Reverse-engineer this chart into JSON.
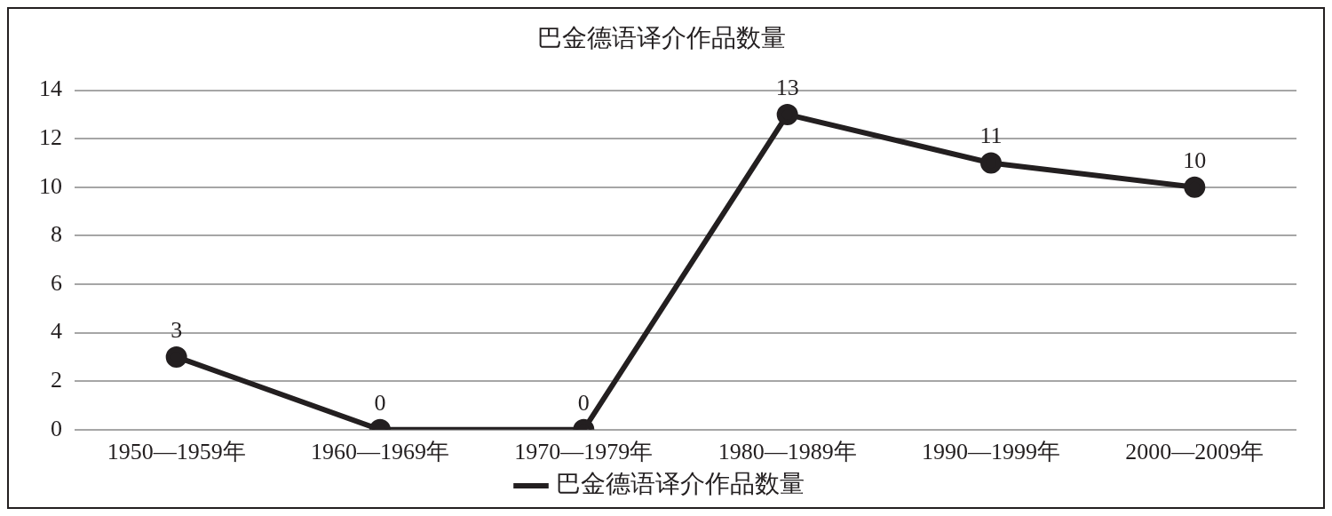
{
  "chart_data": {
    "type": "line",
    "title": "巴金德语译介作品数量",
    "categories": [
      "1950—1959年",
      "1960—1969年",
      "1970—1979年",
      "1980—1989年",
      "1990—1999年",
      "2000—2009年"
    ],
    "series": [
      {
        "name": "巴金德语译介作品数量",
        "color": "#231f20",
        "values": [
          3,
          0,
          0,
          13,
          11,
          10
        ]
      }
    ],
    "ylim": [
      0,
      14
    ],
    "yticks": [
      0,
      2,
      4,
      6,
      8,
      10,
      12,
      14
    ],
    "grid": "y",
    "legend": "bottom",
    "marker": "circle",
    "line_style": "solid",
    "data_labels": true
  }
}
